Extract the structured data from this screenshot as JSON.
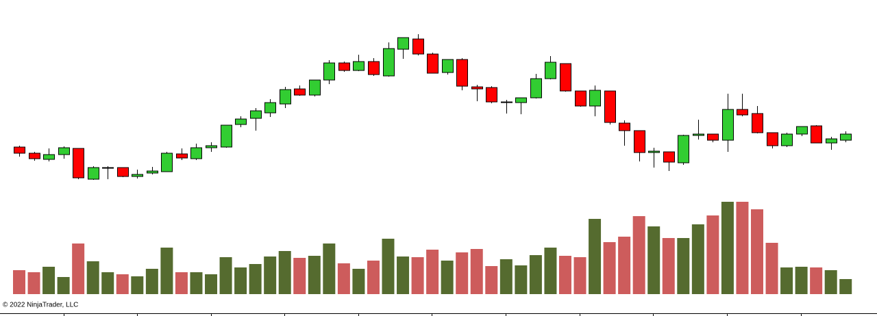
{
  "chart_data": {
    "type": "candlestick",
    "copyright": "© 2022 NinjaTrader, LLC",
    "open": [
      85,
      76,
      67,
      74,
      83,
      38,
      55,
      55,
      42,
      47,
      49,
      75,
      68,
      84,
      85,
      118,
      127,
      135,
      148,
      170,
      161,
      183,
      208,
      197,
      210,
      189,
      228,
      243,
      221,
      194,
      213,
      173,
      172,
      151,
      150,
      157,
      185,
      207,
      167,
      145,
      167,
      120,
      109,
      77,
      78,
      62,
      102,
      104,
      95,
      140,
      134,
      106,
      87,
      104,
      116,
      91,
      95
    ],
    "high": [
      87,
      78,
      83,
      86,
      83,
      57,
      57,
      55,
      52,
      56,
      78,
      83,
      90,
      92,
      117,
      130,
      142,
      155,
      173,
      175,
      183,
      212,
      210,
      220,
      215,
      238,
      245,
      250,
      223,
      213,
      215,
      176,
      174,
      154,
      157,
      192,
      218,
      207,
      167,
      175,
      167,
      124,
      109,
      84,
      78,
      103,
      125,
      104,
      163,
      163,
      145,
      106,
      106,
      115,
      117,
      100,
      108
    ],
    "low": [
      71,
      65,
      64,
      68,
      38,
      37,
      38,
      41,
      39,
      45,
      49,
      66,
      66,
      78,
      84,
      114,
      109,
      129,
      142,
      160,
      159,
      177,
      195,
      196,
      189,
      188,
      214,
      219,
      193,
      191,
      168,
      152,
      149,
      134,
      133,
      156,
      184,
      166,
      144,
      130,
      118,
      87,
      64,
      55,
      50,
      59,
      96,
      92,
      78,
      130,
      105,
      83,
      85,
      101,
      91,
      81,
      92
    ],
    "close": [
      76,
      68,
      74,
      84,
      40,
      55,
      55,
      42,
      45,
      50,
      76,
      69,
      84,
      87,
      117,
      126,
      138,
      150,
      169,
      161,
      183,
      208,
      197,
      210,
      191,
      229,
      245,
      221,
      193,
      213,
      174,
      170,
      151,
      151,
      157,
      185,
      209,
      167,
      145,
      168,
      121,
      109,
      77,
      79,
      63,
      102,
      104,
      95,
      140,
      132,
      106,
      87,
      104,
      115,
      91,
      97,
      104
    ],
    "volume": [
      35,
      32,
      40,
      25,
      74,
      48,
      32,
      29,
      26,
      37,
      68,
      32,
      32,
      29,
      54,
      39,
      44,
      55,
      63,
      53,
      56,
      74,
      45,
      37,
      49,
      81,
      55,
      54,
      65,
      49,
      61,
      66,
      41,
      51,
      42,
      57,
      68,
      56,
      54,
      110,
      76,
      84,
      114,
      99,
      82,
      82,
      102,
      115,
      135,
      135,
      124,
      75,
      39,
      40,
      39,
      35,
      22
    ],
    "up_color": "#32cd32",
    "down_color": "#ff0000",
    "doji_color": "#000000",
    "volume_up_color": "#556b2f",
    "volume_down_color": "#cd5c5c",
    "ylim": [
      0,
      300
    ],
    "volume_ylim": [
      0,
      140
    ]
  }
}
